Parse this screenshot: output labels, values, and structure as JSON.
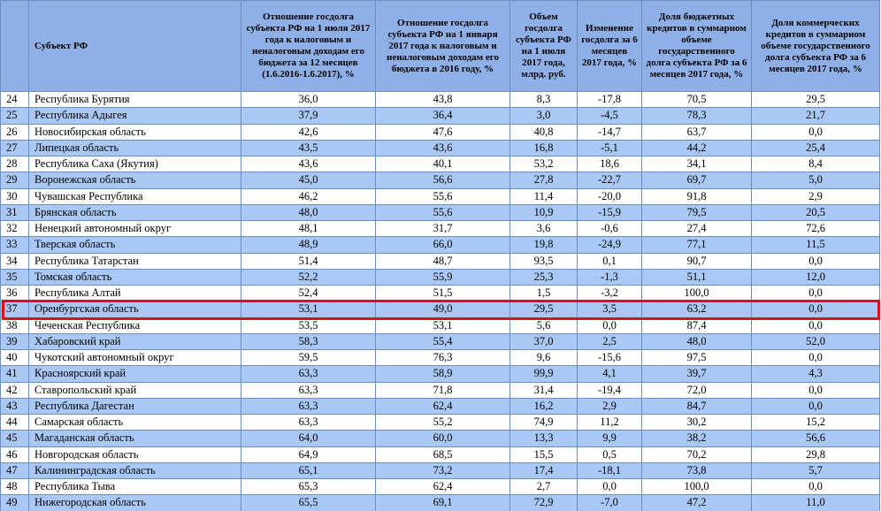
{
  "headers": [
    "",
    "Субъект РФ",
    "Отношение госдолга субъекта РФ на 1 июля 2017 года к налоговым и неналоговым доходам его бюджета за 12 месяцев (1.6.2016-1.6.2017), %",
    "Отношение госдолга субъекта РФ на 1 января 2017 года к налоговым и неналоговым доходам его бюджета в 2016 году, %",
    "Объем госдолга субъекта РФ на 1 июля 2017 года, млрд. руб.",
    "Изменение госдолга за 6 месяцев 2017 года, %",
    "Доля бюджетных кредитов в суммарном объеме государственного долга субъекта РФ за 6 месяцев 2017 года, %",
    "Доля коммерческих кредитов в суммарном объеме государственного долга субъекта РФ за 6 месяцев 2017 года, %"
  ],
  "rows": [
    [
      "24",
      "Республика Бурятия",
      "36,0",
      "43,8",
      "8,3",
      "-17,8",
      "70,5",
      "29,5"
    ],
    [
      "25",
      "Республика Адыгея",
      "37,9",
      "36,4",
      "3,0",
      "-4,5",
      "78,3",
      "21,7"
    ],
    [
      "26",
      "Новосибирская область",
      "42,6",
      "47,6",
      "40,8",
      "-14,7",
      "63,7",
      "0,0"
    ],
    [
      "27",
      "Липецкая область",
      "43,5",
      "43,6",
      "16,8",
      "-5,1",
      "44,2",
      "25,4"
    ],
    [
      "28",
      "Республика Саха (Якутия)",
      "43,6",
      "40,1",
      "53,2",
      "18,6",
      "34,1",
      "8,4"
    ],
    [
      "29",
      "Воронежская область",
      "45,0",
      "56,6",
      "27,8",
      "-22,7",
      "69,7",
      "5,0"
    ],
    [
      "30",
      "Чувашская Республика",
      "46,2",
      "55,6",
      "11,4",
      "-20,0",
      "91,8",
      "2,9"
    ],
    [
      "31",
      "Брянская область",
      "48,0",
      "55,6",
      "10,9",
      "-15,9",
      "79,5",
      "20,5"
    ],
    [
      "32",
      "Ненецкий автономный округ",
      "48,1",
      "31,7",
      "3,6",
      "-0,6",
      "27,4",
      "72,6"
    ],
    [
      "33",
      "Тверская область",
      "48,9",
      "66,0",
      "19,8",
      "-24,9",
      "77,1",
      "11,5"
    ],
    [
      "34",
      "Республика Татарстан",
      "51,4",
      "48,7",
      "93,5",
      "0,1",
      "90,7",
      "0,0"
    ],
    [
      "35",
      "Томская область",
      "52,2",
      "55,9",
      "25,3",
      "-1,3",
      "51,1",
      "12,0"
    ],
    [
      "36",
      "Республика Алтай",
      "52,4",
      "51,5",
      "1,5",
      "-3,2",
      "100,0",
      "0,0"
    ],
    [
      "37",
      "Оренбургская область",
      "53,1",
      "49,0",
      "29,5",
      "3,5",
      "63,2",
      "0,0"
    ],
    [
      "38",
      "Чеченская Республика",
      "53,5",
      "53,1",
      "5,6",
      "0,0",
      "87,4",
      "0,0"
    ],
    [
      "39",
      "Хабаровский край",
      "58,3",
      "55,4",
      "37,0",
      "2,5",
      "48,0",
      "52,0"
    ],
    [
      "40",
      "Чукотский автономный округ",
      "59,5",
      "76,3",
      "9,6",
      "-15,6",
      "97,5",
      "0,0"
    ],
    [
      "41",
      "Красноярский край",
      "63,3",
      "58,9",
      "99,9",
      "4,1",
      "39,7",
      "4,3"
    ],
    [
      "42",
      "Ставропольский край",
      "63,3",
      "71,8",
      "31,4",
      "-19,4",
      "72,0",
      "0,0"
    ],
    [
      "43",
      "Республика Дагестан",
      "63,3",
      "62,4",
      "16,2",
      "2,9",
      "84,7",
      "0,0"
    ],
    [
      "44",
      "Самарская область",
      "63,3",
      "55,2",
      "74,9",
      "11,2",
      "30,2",
      "15,2"
    ],
    [
      "45",
      "Магаданская область",
      "64,0",
      "60,0",
      "13,3",
      "9,9",
      "38,2",
      "56,6"
    ],
    [
      "46",
      "Новгородская область",
      "64,9",
      "68,5",
      "15,5",
      "0,5",
      "70,2",
      "29,8"
    ],
    [
      "47",
      "Калининградская область",
      "65,1",
      "73,2",
      "17,4",
      "-18,1",
      "73,8",
      "5,7"
    ],
    [
      "48",
      "Республика Тыва",
      "65,3",
      "62,4",
      "2,7",
      "0,0",
      "100,0",
      "0,0"
    ],
    [
      "49",
      "Нижегородская область",
      "65,5",
      "69,1",
      "72,9",
      "-7,0",
      "47,2",
      "11,0"
    ]
  ],
  "highlighted_row": "37",
  "colors": {
    "header_bg": "#8fb0e6",
    "stripe_bg": "#a9c8f5",
    "border": "#6a8fbf",
    "highlight": "#d6121f"
  }
}
